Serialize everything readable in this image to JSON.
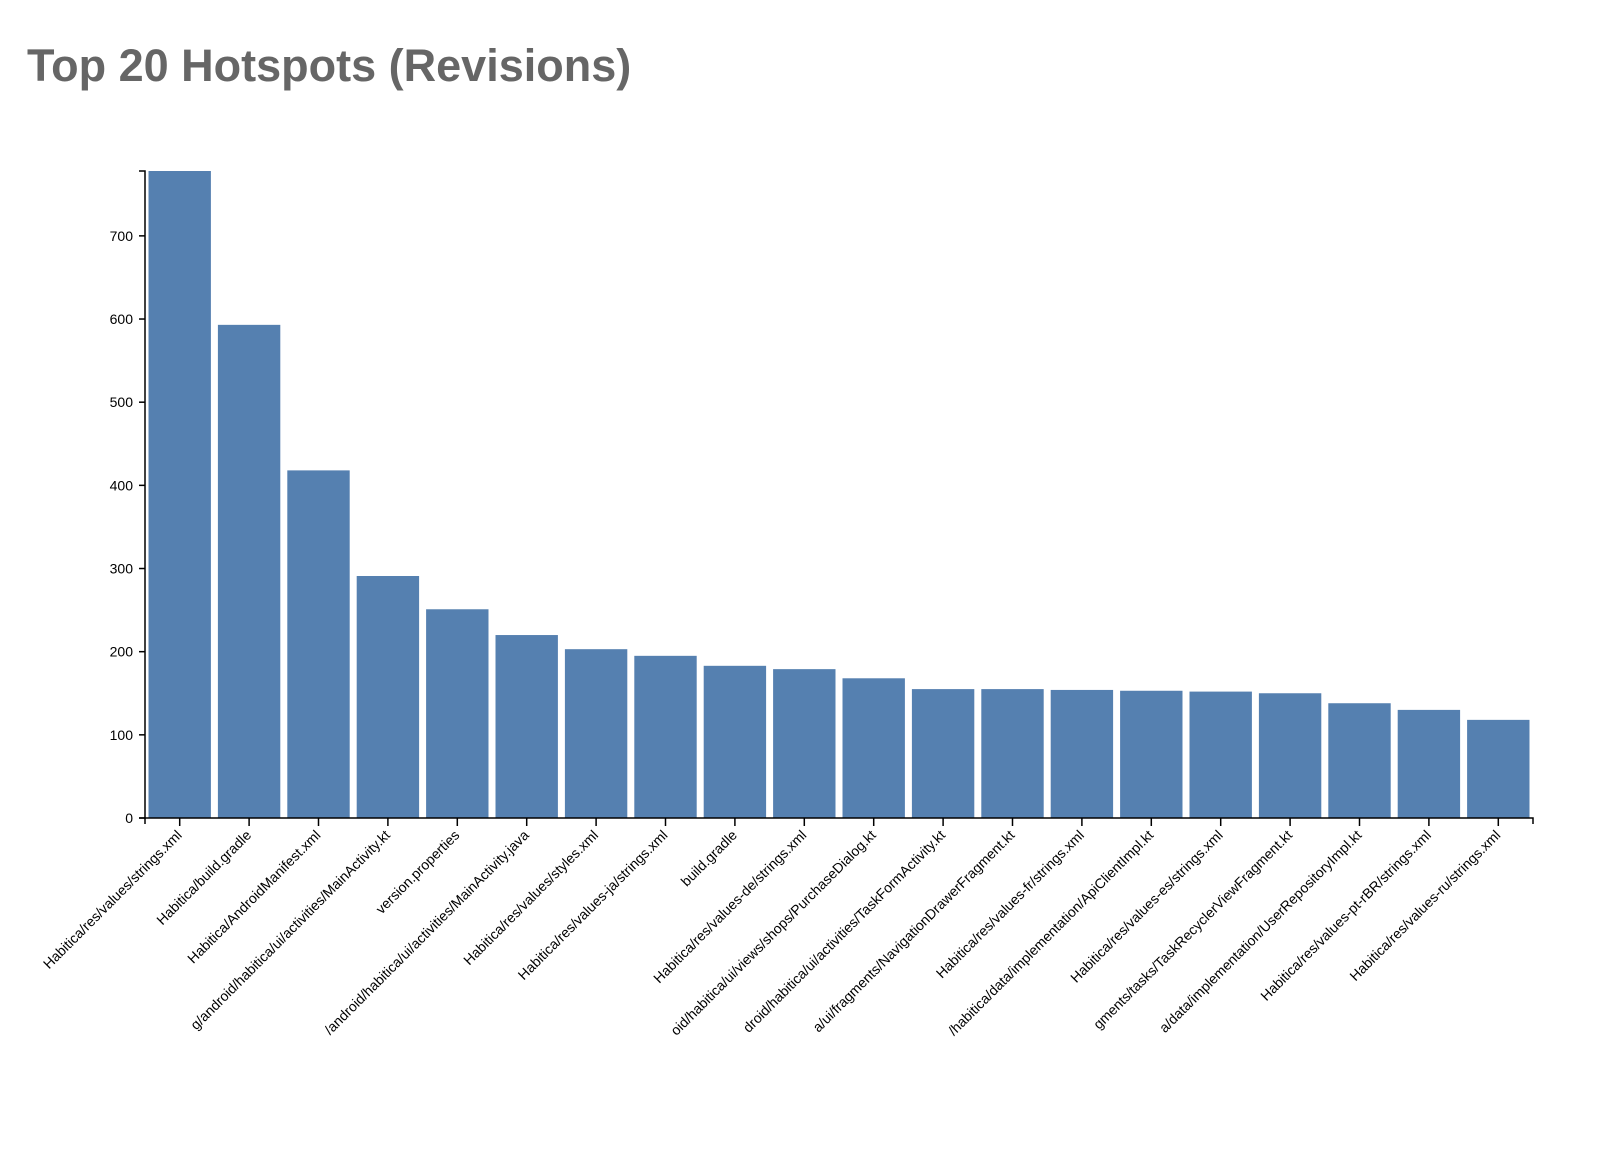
{
  "chart_data": {
    "type": "bar",
    "title": "Top 20 Hotspots (Revisions)",
    "xlabel": "",
    "ylabel": "",
    "ylim": [
      0,
      778
    ],
    "yticks": [
      0,
      100,
      200,
      300,
      400,
      500,
      600,
      700
    ],
    "grid": false,
    "bar_color": "#5580b0",
    "categories": [
      "Habitica/res/values/strings.xml",
      "Habitica/build.gradle",
      "Habitica/AndroidManifest.xml",
      "g/android/habitica/ui/activities/MainActivity.kt",
      "version.properties",
      "/android/habitica/ui/activities/MainActivity.java",
      "Habitica/res/values/styles.xml",
      "Habitica/res/values-ja/strings.xml",
      "build.gradle",
      "Habitica/res/values-de/strings.xml",
      "oid/habitica/ui/views/shops/PurchaseDialog.kt",
      "droid/habitica/ui/activities/TaskFormActivity.kt",
      "a/ui/fragments/NavigationDrawerFragment.kt",
      "Habitica/res/values-fr/strings.xml",
      "/habitica/data/implementation/ApiClientImpl.kt",
      "Habitica/res/values-es/strings.xml",
      "gments/tasks/TaskRecyclerViewFragment.kt",
      "a/data/implementation/UserRepositoryImpl.kt",
      "Habitica/res/values-pt-rBR/strings.xml",
      "Habitica/res/values-ru/strings.xml"
    ],
    "values": [
      778,
      593,
      418,
      291,
      251,
      220,
      203,
      195,
      183,
      179,
      168,
      155,
      155,
      154,
      153,
      152,
      150,
      138,
      130,
      118
    ]
  }
}
